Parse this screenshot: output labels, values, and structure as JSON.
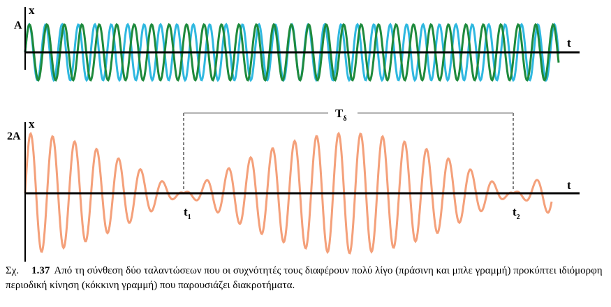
{
  "top_plot": {
    "axis_y_label": "x",
    "axis_x_label": "t",
    "amplitude_label": "A",
    "colors": {
      "wave1": "#2fb8e0",
      "wave2": "#1e8a3c",
      "axis": "#000000"
    }
  },
  "bottom_plot": {
    "axis_y_label": "x",
    "axis_x_label": "t",
    "amplitude_label": "2A",
    "period_label": "T",
    "period_subscript": "δ",
    "t1_label": "t",
    "t1_subscript": "1",
    "t2_label": "t",
    "t2_subscript": "2",
    "colors": {
      "beat": "#f4a07a",
      "axis": "#000000",
      "bracket": "#999999"
    }
  },
  "caption": {
    "prefix": "Σχ.",
    "number": "1.37",
    "text": "Από τη σύνθεση δύο ταλαντώσεων που οι συχνότητές τους διαφέρουν πολύ λίγο (πράσινη και μπλε γραμμή) προκύπτει ιδιόμορφη περιοδική κίνηση (κόκκινη γραμμή) που παρουσιάζει διακροτήματα."
  }
}
